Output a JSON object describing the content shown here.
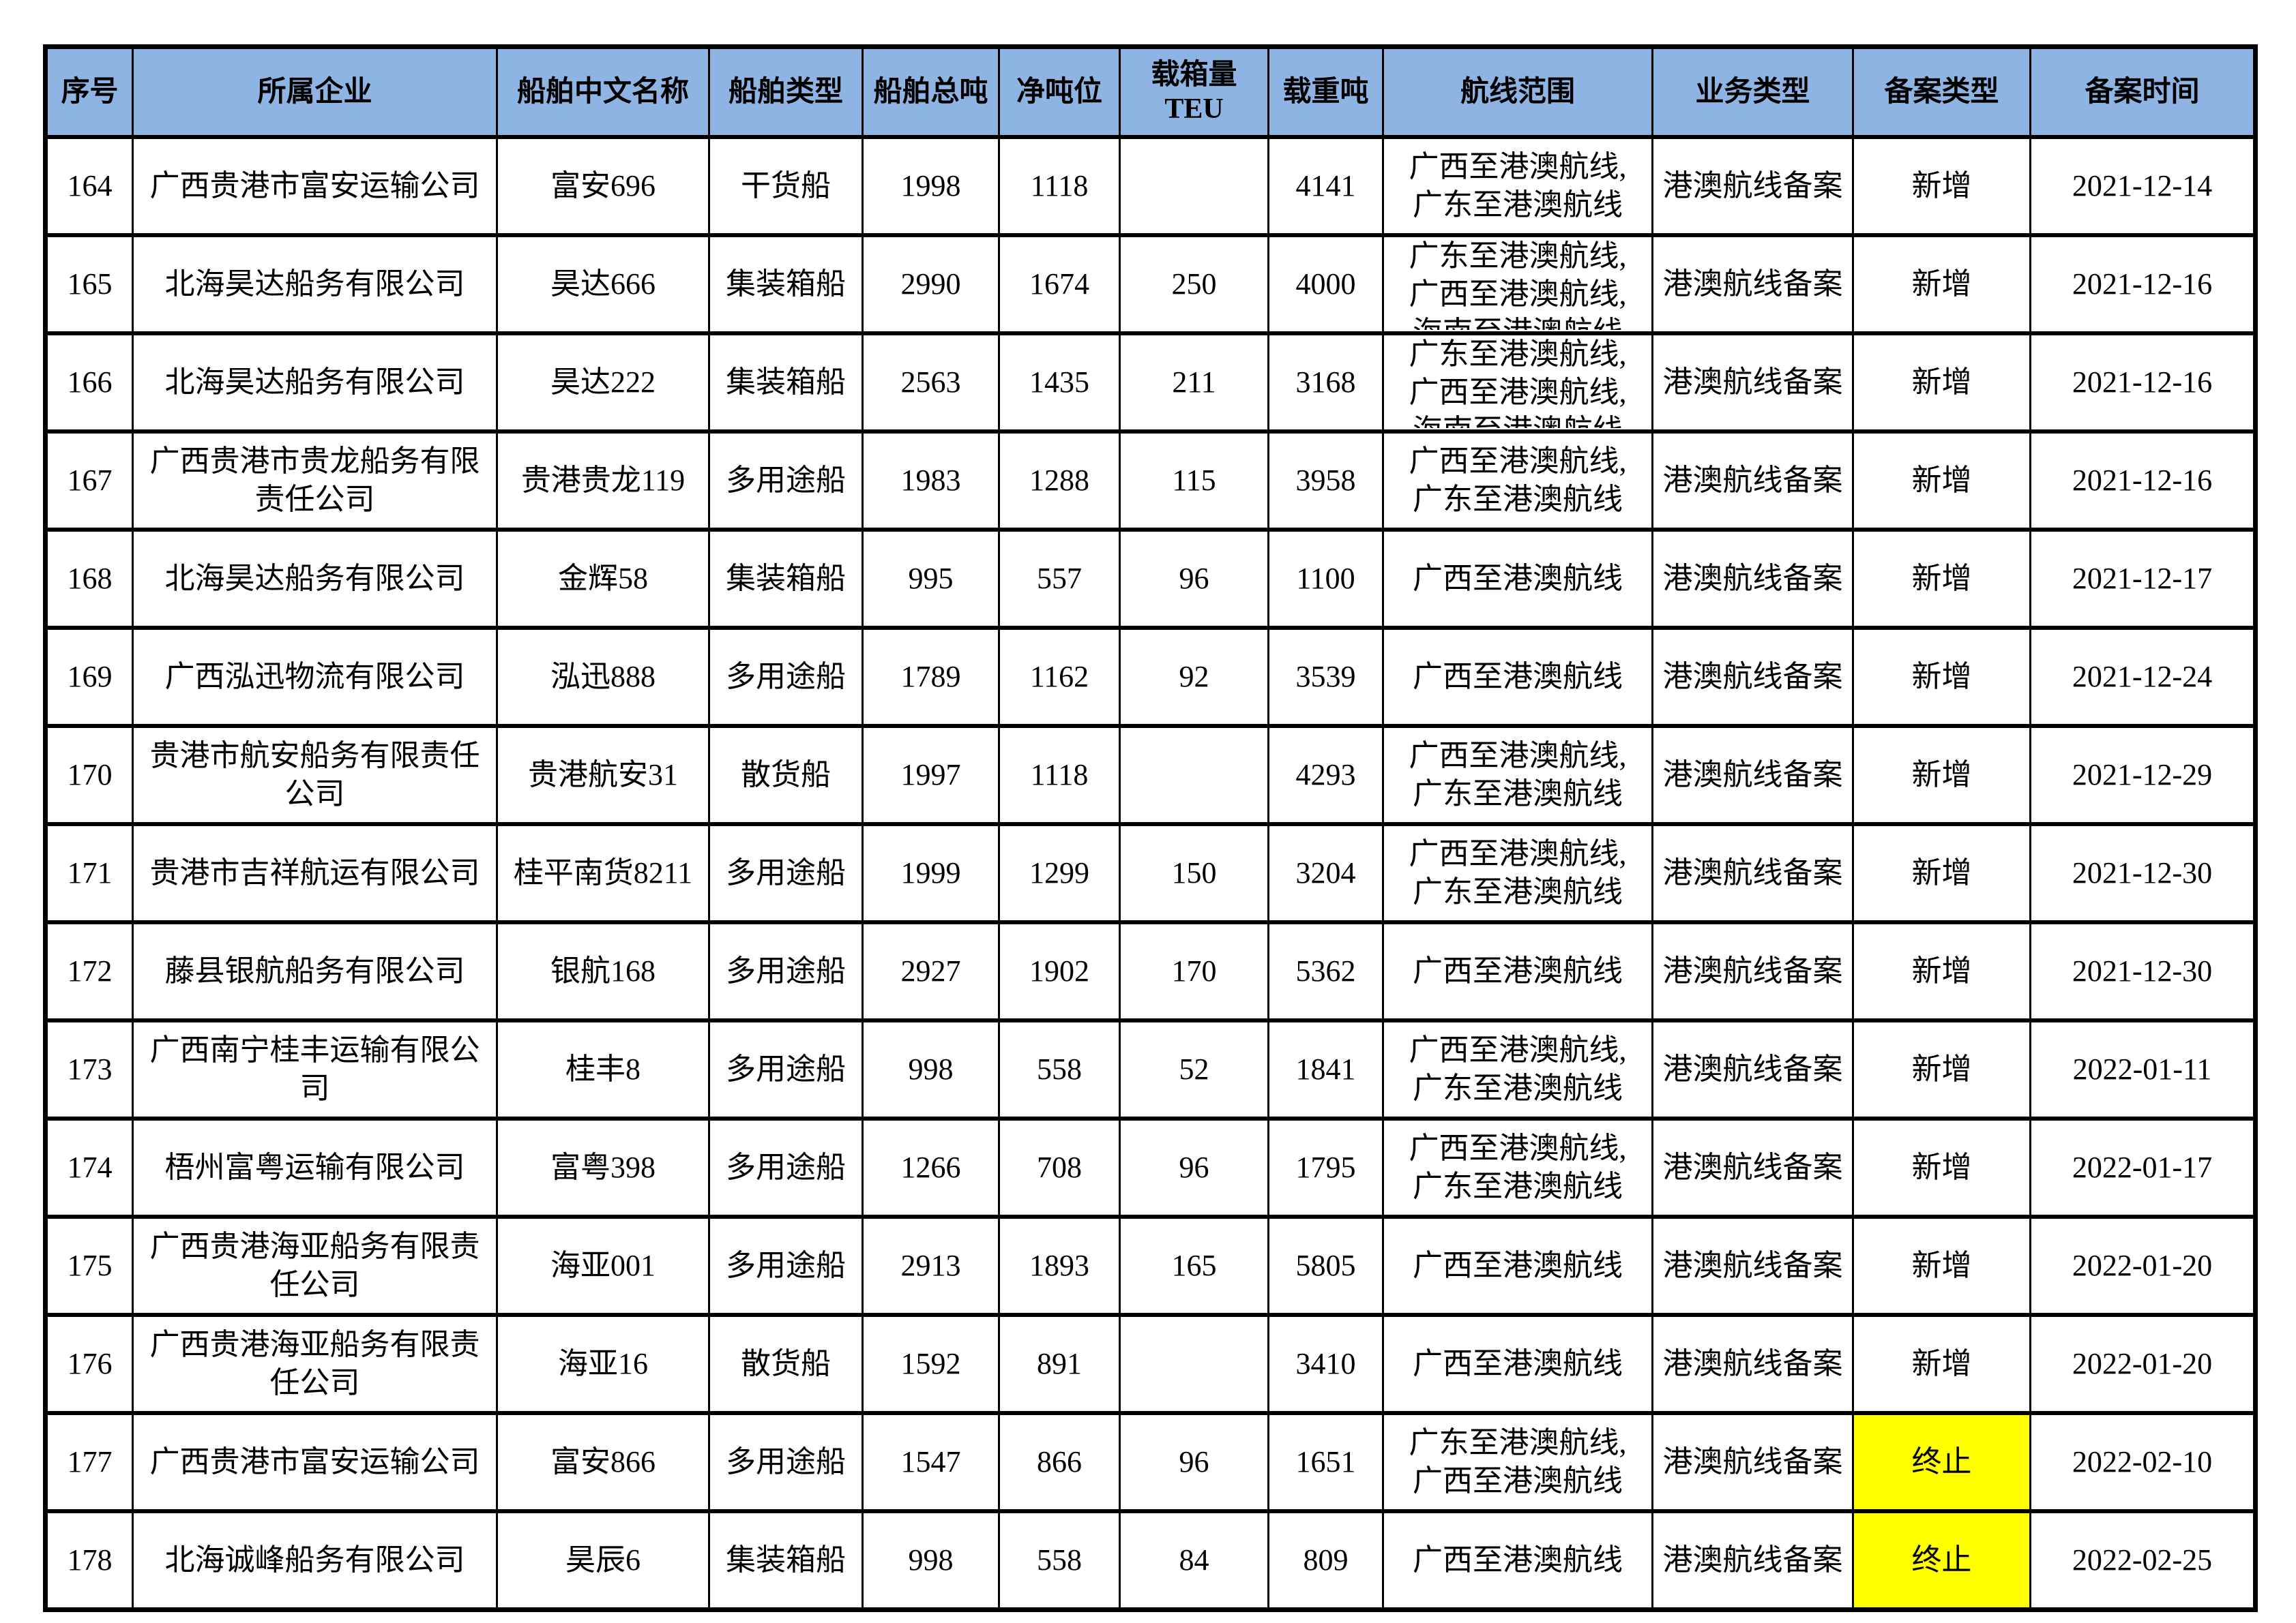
{
  "table": {
    "colors": {
      "header_bg": "#8EB4E3",
      "highlight": "#FFFF00",
      "border": "#000000"
    },
    "field_order": [
      "seq",
      "company",
      "ship_name",
      "ship_type",
      "gross_tonnage",
      "net_tonnage",
      "teu",
      "dwt",
      "route",
      "business_type",
      "record_type",
      "record_date"
    ],
    "columns": [
      {
        "key": "seq",
        "label": "序号"
      },
      {
        "key": "company",
        "label": "所属企业"
      },
      {
        "key": "ship_name",
        "label": "船舶中文名称"
      },
      {
        "key": "ship_type",
        "label": "船舶类型"
      },
      {
        "key": "gross_tonnage",
        "label": "船舶总吨"
      },
      {
        "key": "net_tonnage",
        "label": "净吨位"
      },
      {
        "key": "teu",
        "label": "载箱量TEU"
      },
      {
        "key": "dwt",
        "label": "载重吨"
      },
      {
        "key": "route",
        "label": "航线范围"
      },
      {
        "key": "business_type",
        "label": "业务类型"
      },
      {
        "key": "record_type",
        "label": "备案类型"
      },
      {
        "key": "record_date",
        "label": "备案时间"
      }
    ],
    "rows": [
      {
        "seq": "164",
        "company": "广西贵港市富安运输公司",
        "ship_name": "富安696",
        "ship_type": "干货船",
        "gross_tonnage": "1998",
        "net_tonnage": "1118",
        "teu": "",
        "dwt": "4141",
        "route": "广西至港澳航线,\n广东至港澳航线",
        "business_type": "港澳航线备案",
        "record_type": "新增",
        "record_type_highlight": false,
        "record_date": "2021-12-14"
      },
      {
        "seq": "165",
        "company": "北海昊达船务有限公司",
        "ship_name": "昊达666",
        "ship_type": "集装箱船",
        "gross_tonnage": "2990",
        "net_tonnage": "1674",
        "teu": "250",
        "dwt": "4000",
        "route": "广东至港澳航线,\n广西至港澳航线,\n海南至港澳航线",
        "route_overflow": true,
        "business_type": "港澳航线备案",
        "record_type": "新增",
        "record_type_highlight": false,
        "record_date": "2021-12-16"
      },
      {
        "seq": "166",
        "company": "北海昊达船务有限公司",
        "ship_name": "昊达222",
        "ship_type": "集装箱船",
        "gross_tonnage": "2563",
        "net_tonnage": "1435",
        "teu": "211",
        "dwt": "3168",
        "route": "广东至港澳航线,\n广西至港澳航线,\n海南至港澳航线",
        "route_overflow": true,
        "business_type": "港澳航线备案",
        "record_type": "新增",
        "record_type_highlight": false,
        "record_date": "2021-12-16"
      },
      {
        "seq": "167",
        "company": "广西贵港市贵龙船务有限责任公司",
        "ship_name": "贵港贵龙119",
        "ship_type": "多用途船",
        "gross_tonnage": "1983",
        "net_tonnage": "1288",
        "teu": "115",
        "dwt": "3958",
        "route": "广西至港澳航线,\n广东至港澳航线",
        "business_type": "港澳航线备案",
        "record_type": "新增",
        "record_type_highlight": false,
        "record_date": "2021-12-16"
      },
      {
        "seq": "168",
        "company": "北海昊达船务有限公司",
        "ship_name": "金辉58",
        "ship_type": "集装箱船",
        "gross_tonnage": "995",
        "net_tonnage": "557",
        "teu": "96",
        "dwt": "1100",
        "route": "广西至港澳航线",
        "business_type": "港澳航线备案",
        "record_type": "新增",
        "record_type_highlight": false,
        "record_date": "2021-12-17"
      },
      {
        "seq": "169",
        "company": "广西泓迅物流有限公司",
        "ship_name": "泓迅888",
        "ship_type": "多用途船",
        "gross_tonnage": "1789",
        "net_tonnage": "1162",
        "teu": "92",
        "dwt": "3539",
        "route": "广西至港澳航线",
        "business_type": "港澳航线备案",
        "record_type": "新增",
        "record_type_highlight": false,
        "record_date": "2021-12-24"
      },
      {
        "seq": "170",
        "company": "贵港市航安船务有限责任公司",
        "ship_name": "贵港航安31",
        "ship_type": "散货船",
        "gross_tonnage": "1997",
        "net_tonnage": "1118",
        "teu": "",
        "dwt": "4293",
        "route": "广西至港澳航线,\n广东至港澳航线",
        "business_type": "港澳航线备案",
        "record_type": "新增",
        "record_type_highlight": false,
        "record_date": "2021-12-29"
      },
      {
        "seq": "171",
        "company": "贵港市吉祥航运有限公司",
        "ship_name": "桂平南货8211",
        "ship_type": "多用途船",
        "gross_tonnage": "1999",
        "net_tonnage": "1299",
        "teu": "150",
        "dwt": "3204",
        "route": "广西至港澳航线,\n广东至港澳航线",
        "business_type": "港澳航线备案",
        "record_type": "新增",
        "record_type_highlight": false,
        "record_date": "2021-12-30"
      },
      {
        "seq": "172",
        "company": "藤县银航船务有限公司",
        "ship_name": "银航168",
        "ship_type": "多用途船",
        "gross_tonnage": "2927",
        "net_tonnage": "1902",
        "teu": "170",
        "dwt": "5362",
        "route": "广西至港澳航线",
        "business_type": "港澳航线备案",
        "record_type": "新增",
        "record_type_highlight": false,
        "record_date": "2021-12-30"
      },
      {
        "seq": "173",
        "company": "广西南宁桂丰运输有限公司",
        "ship_name": "桂丰8",
        "ship_type": "多用途船",
        "gross_tonnage": "998",
        "net_tonnage": "558",
        "teu": "52",
        "dwt": "1841",
        "route": "广西至港澳航线,\n广东至港澳航线",
        "business_type": "港澳航线备案",
        "record_type": "新增",
        "record_type_highlight": false,
        "record_date": "2022-01-11"
      },
      {
        "seq": "174",
        "company": "梧州富粤运输有限公司",
        "ship_name": "富粤398",
        "ship_type": "多用途船",
        "gross_tonnage": "1266",
        "net_tonnage": "708",
        "teu": "96",
        "dwt": "1795",
        "route": "广西至港澳航线,\n广东至港澳航线",
        "business_type": "港澳航线备案",
        "record_type": "新增",
        "record_type_highlight": false,
        "record_date": "2022-01-17"
      },
      {
        "seq": "175",
        "company": "广西贵港海亚船务有限责任公司",
        "ship_name": "海亚001",
        "ship_type": "多用途船",
        "gross_tonnage": "2913",
        "net_tonnage": "1893",
        "teu": "165",
        "dwt": "5805",
        "route": "广西至港澳航线",
        "business_type": "港澳航线备案",
        "record_type": "新增",
        "record_type_highlight": false,
        "record_date": "2022-01-20"
      },
      {
        "seq": "176",
        "company": "广西贵港海亚船务有限责任公司",
        "ship_name": "海亚16",
        "ship_type": "散货船",
        "gross_tonnage": "1592",
        "net_tonnage": "891",
        "teu": "",
        "dwt": "3410",
        "route": "广西至港澳航线",
        "business_type": "港澳航线备案",
        "record_type": "新增",
        "record_type_highlight": false,
        "record_date": "2022-01-20"
      },
      {
        "seq": "177",
        "company": "广西贵港市富安运输公司",
        "ship_name": "富安866",
        "ship_type": "多用途船",
        "gross_tonnage": "1547",
        "net_tonnage": "866",
        "teu": "96",
        "dwt": "1651",
        "route": "广东至港澳航线,\n广西至港澳航线",
        "business_type": "港澳航线备案",
        "record_type": "终止",
        "record_type_highlight": true,
        "record_date": "2022-02-10"
      },
      {
        "seq": "178",
        "company": "北海诚峰船务有限公司",
        "ship_name": "昊辰6",
        "ship_type": "集装箱船",
        "gross_tonnage": "998",
        "net_tonnage": "558",
        "teu": "84",
        "dwt": "809",
        "route": "广西至港澳航线",
        "business_type": "港澳航线备案",
        "record_type": "终止",
        "record_type_highlight": true,
        "record_date": "2022-02-25"
      }
    ]
  }
}
